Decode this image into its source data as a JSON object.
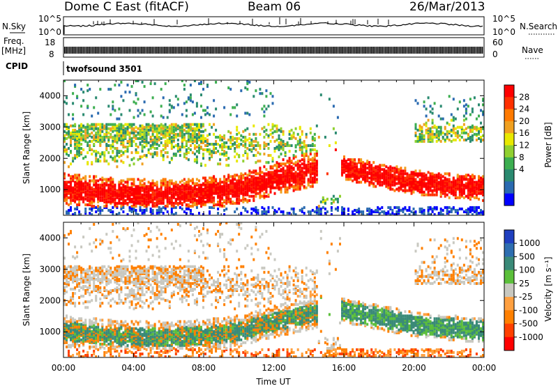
{
  "header": {
    "title": "Dome C East (fitACF)",
    "beam": "Beam 06",
    "date": "26/Mar/2013"
  },
  "strip": {
    "nsky_label": "N.Sky",
    "nsky_ticks": [
      "10^5",
      "10^0"
    ],
    "nsearch_label": "N.Search",
    "nsearch_ticks": [
      "10^5",
      "10^0"
    ],
    "freq_label_1": "Freq.",
    "freq_label_2": "[MHz]",
    "freq_ticks": [
      "18",
      "8"
    ],
    "nave_label": "Nave",
    "nave_ticks": [
      "60",
      "0"
    ],
    "cpid_label": "CPID",
    "cpid_value": "twofsound 3501"
  },
  "chart_data": [
    {
      "type": "heatmap",
      "panel": "power",
      "ylabel": "Slant Range [km]",
      "yticks": [
        "1000",
        "2000",
        "3000",
        "4000"
      ],
      "ylim": [
        180,
        4500
      ],
      "xlim": [
        0,
        24
      ],
      "colorbar_label": "Power [dB]",
      "colorbar_ticks": [
        "28",
        "24",
        "20",
        "16",
        "12",
        "8",
        "4"
      ],
      "colors": [
        "#ff0000",
        "#ff3000",
        "#ff7a00",
        "#f0a020",
        "#e8e800",
        "#90d030",
        "#3cae50",
        "#2a8a70",
        "#2a6ab0",
        "#0000ff"
      ]
    },
    {
      "type": "heatmap",
      "panel": "velocity",
      "xlabel": "Time UT",
      "ylabel": "Slant Range [km]",
      "xticks": [
        "00:00",
        "04:00",
        "08:00",
        "12:00",
        "16:00",
        "20:00",
        "00:00"
      ],
      "yticks": [
        "1000",
        "2000",
        "3000",
        "4000"
      ],
      "ylim": [
        180,
        4500
      ],
      "xlim": [
        0,
        24
      ],
      "colorbar_label": "Velocity [m s⁻¹]",
      "colorbar_ticks": [
        "1000",
        "500",
        "100",
        "25",
        "-25",
        "-100",
        "-500",
        "-1000"
      ],
      "colors": [
        "#1f3fbf",
        "#2e6eb0",
        "#3a8a78",
        "#5bbf3a",
        "#c8c8c0",
        "#ffa040",
        "#ff8000",
        "#ff4000",
        "#ff0000"
      ]
    }
  ]
}
